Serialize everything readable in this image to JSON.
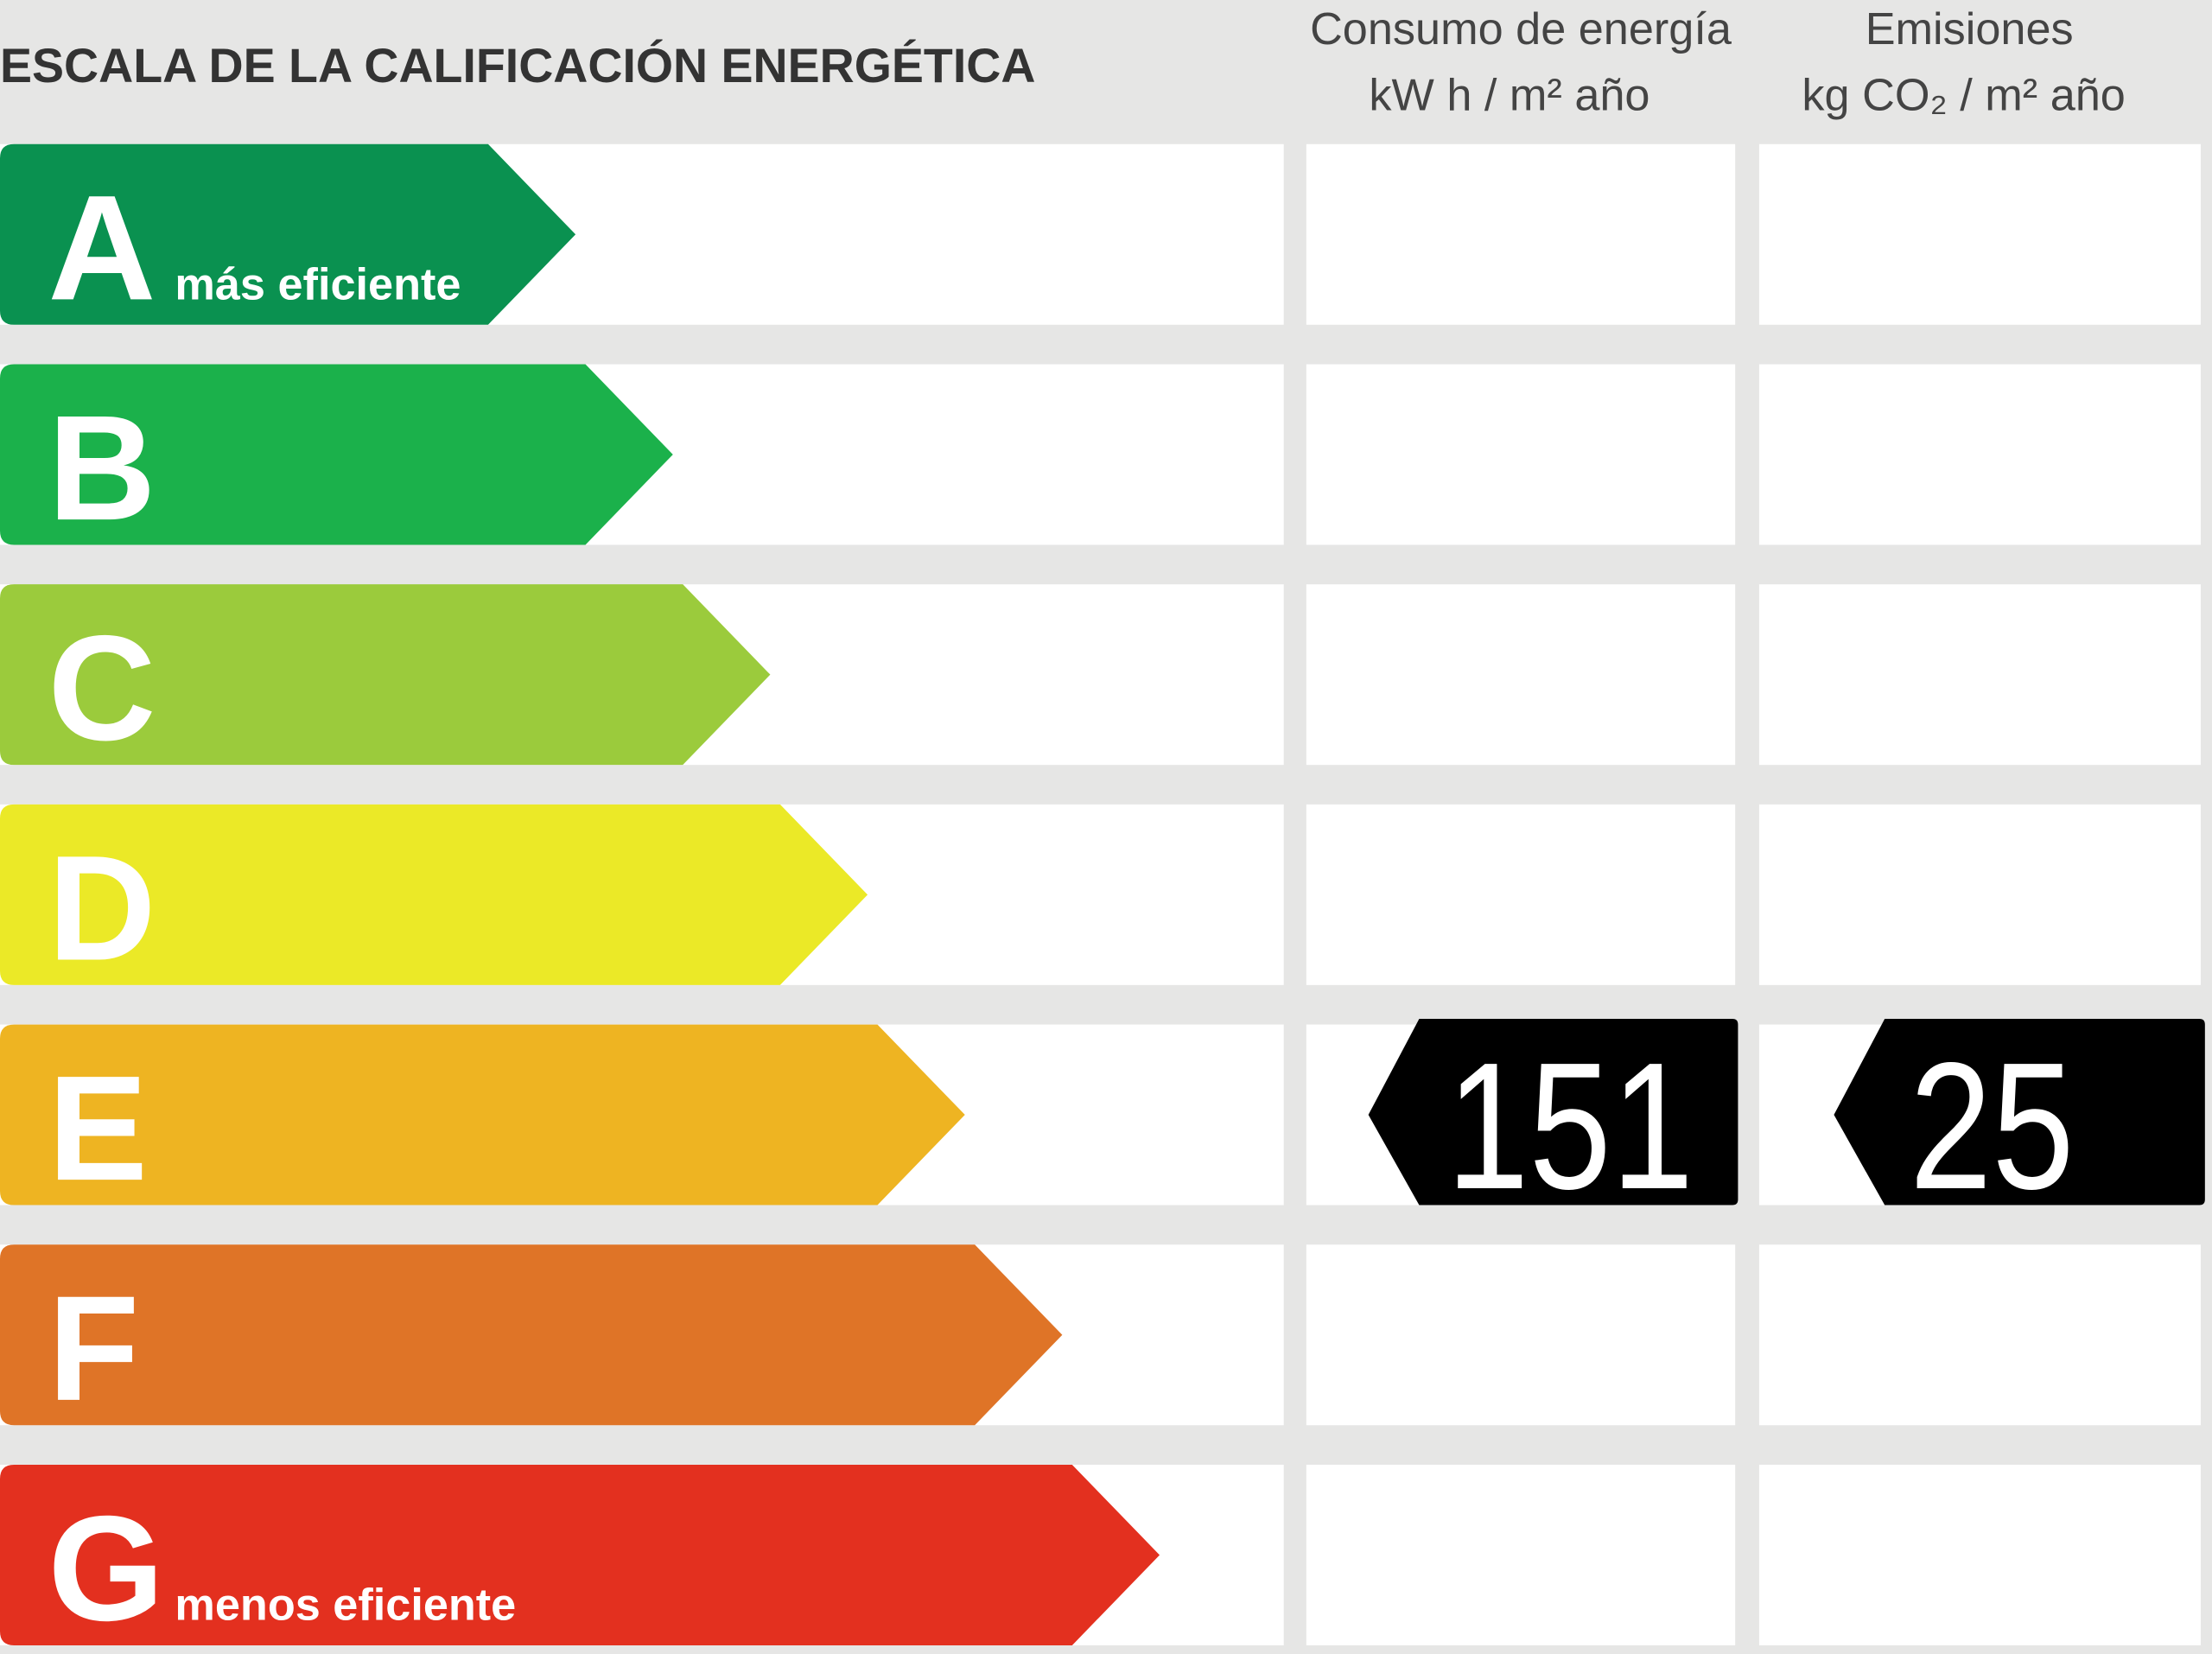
{
  "header": {
    "title": "ESCALA DE LA CALIFICACIÓN ENERGÉTICA",
    "columns": [
      {
        "line1": "Consumo de energía",
        "line2": "kW h  / m² año"
      },
      {
        "line1": "Emisiones",
        "line2": "kg CO₂  / m² año"
      }
    ]
  },
  "ratings": [
    {
      "letter": "A",
      "label": "más eficiente",
      "color": "#0a9150"
    },
    {
      "letter": "B",
      "color": "#1bb14b"
    },
    {
      "letter": "C",
      "color": "#9bcb3c"
    },
    {
      "letter": "D",
      "color": "#ebe927"
    },
    {
      "letter": "E",
      "color": "#eeb422",
      "consumption": 151,
      "emissions": 25
    },
    {
      "letter": "F",
      "color": "#df7427"
    },
    {
      "letter": "G",
      "label": "menos eficiente",
      "color": "#e3301f"
    }
  ]
}
